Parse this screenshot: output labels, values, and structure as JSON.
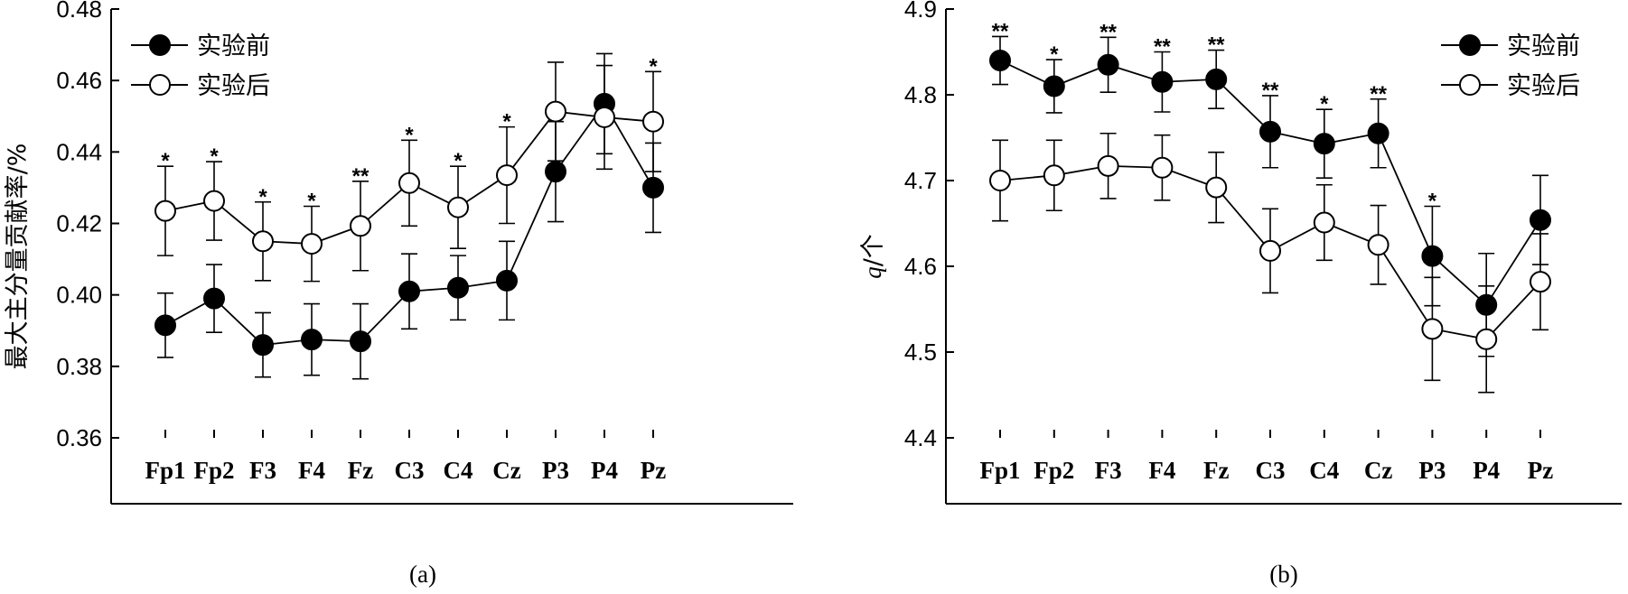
{
  "chart_data": [
    {
      "type": "line",
      "panel_label": "(a)",
      "ylabel": "最大主分量贡献率/%",
      "xlabel": "",
      "categories": [
        "Fp1",
        "Fp2",
        "F3",
        "F4",
        "Fz",
        "C3",
        "C4",
        "Cz",
        "P3",
        "P4",
        "Pz"
      ],
      "ylim": [
        0.36,
        0.48
      ],
      "yticks": [
        "0.36",
        "0.38",
        "0.40",
        "0.42",
        "0.44",
        "0.46",
        "0.48"
      ],
      "legend_position": "top-left",
      "series": [
        {
          "name": "实验前",
          "marker": "filled",
          "values": [
            0.3915,
            0.399,
            0.386,
            0.3875,
            0.387,
            0.401,
            0.402,
            0.404,
            0.4345,
            0.4535,
            0.43
          ],
          "errors": [
            0.009,
            0.0095,
            0.009,
            0.01,
            0.0105,
            0.0105,
            0.009,
            0.011,
            0.014,
            0.014,
            0.0125
          ]
        },
        {
          "name": "实验后",
          "marker": "open",
          "values": [
            0.4235,
            0.4263,
            0.415,
            0.4143,
            0.4193,
            0.4313,
            0.4245,
            0.4335,
            0.4513,
            0.4497,
            0.4485
          ],
          "errors": [
            0.0125,
            0.011,
            0.011,
            0.0105,
            0.0125,
            0.012,
            0.0115,
            0.0135,
            0.0138,
            0.0145,
            0.014
          ]
        }
      ],
      "significance": [
        "*",
        "*",
        "*",
        "*",
        "**",
        "*",
        "*",
        "*",
        "",
        "",
        "*"
      ]
    },
    {
      "type": "line",
      "panel_label": "(b)",
      "ylabel_italic": "q",
      "ylabel_unit": "/个",
      "xlabel": "",
      "categories": [
        "Fp1",
        "Fp2",
        "F3",
        "F4",
        "Fz",
        "C3",
        "C4",
        "Cz",
        "P3",
        "P4",
        "Pz"
      ],
      "ylim": [
        4.4,
        4.9
      ],
      "yticks": [
        "4.4",
        "4.5",
        "4.6",
        "4.7",
        "4.8",
        "4.9"
      ],
      "legend_position": "top-right",
      "series": [
        {
          "name": "实验前",
          "marker": "filled",
          "values": [
            4.84,
            4.81,
            4.835,
            4.815,
            4.818,
            4.757,
            4.743,
            4.755,
            4.612,
            4.555,
            4.654
          ],
          "errors": [
            0.028,
            0.031,
            0.032,
            0.035,
            0.034,
            0.042,
            0.04,
            0.04,
            0.058,
            0.06,
            0.052
          ]
        },
        {
          "name": "实验后",
          "marker": "open",
          "values": [
            4.7,
            4.706,
            4.717,
            4.715,
            4.692,
            4.618,
            4.651,
            4.625,
            4.527,
            4.515,
            4.582
          ],
          "errors": [
            0.047,
            0.041,
            0.038,
            0.038,
            0.041,
            0.049,
            0.044,
            0.046,
            0.06,
            0.062,
            0.056
          ]
        }
      ],
      "significance": [
        "**",
        "*",
        "**",
        "**",
        "**",
        "**",
        "*",
        "**",
        "*",
        "",
        ""
      ]
    }
  ]
}
